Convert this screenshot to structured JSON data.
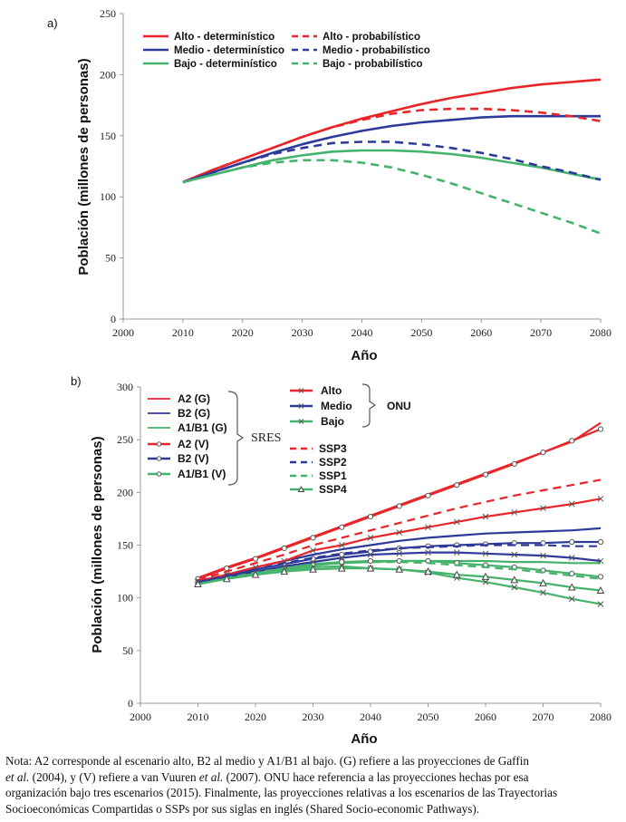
{
  "colors": {
    "red": "#e8262a",
    "blue": "#2e3a9a",
    "green": "#45b36b",
    "axis": "#999999"
  },
  "chart_data": [
    {
      "panel_label": "a)",
      "type": "line",
      "xlabel": "Año",
      "ylabel": "Población (millones de personas)",
      "xlim": [
        2000,
        2080
      ],
      "ylim": [
        0,
        250
      ],
      "xticks": [
        2000,
        2010,
        2020,
        2030,
        2040,
        2050,
        2060,
        2070,
        2080
      ],
      "yticks": [
        0,
        50,
        100,
        150,
        200,
        250
      ],
      "grid": false,
      "legend_position": "top",
      "x": [
        2010,
        2015,
        2020,
        2025,
        2030,
        2035,
        2040,
        2045,
        2050,
        2055,
        2060,
        2065,
        2070,
        2075,
        2080
      ],
      "series": [
        {
          "name": "Alto - determinístico",
          "color": "red",
          "dash": false,
          "values": [
            112,
            122,
            131,
            140,
            149,
            157,
            164,
            170,
            176,
            181,
            185,
            189,
            192,
            194,
            196
          ]
        },
        {
          "name": "Medio - determinístico",
          "color": "blue",
          "dash": false,
          "values": [
            112,
            120,
            128,
            136,
            143,
            149,
            154,
            158,
            161,
            163,
            165,
            166,
            166,
            166,
            166
          ]
        },
        {
          "name": "Bajo - determinístico",
          "color": "green",
          "dash": false,
          "values": [
            112,
            118,
            124,
            130,
            134,
            137,
            138,
            138,
            137,
            135,
            132,
            128,
            124,
            119,
            114
          ]
        },
        {
          "name": "Alto - probabilístico",
          "color": "red",
          "dash": true,
          "values": [
            112,
            122,
            131,
            140,
            149,
            157,
            163,
            168,
            171,
            172,
            172,
            171,
            169,
            166,
            162
          ]
        },
        {
          "name": "Medio - probabilístico",
          "color": "blue",
          "dash": true,
          "values": [
            112,
            120,
            128,
            135,
            140,
            144,
            145,
            145,
            143,
            140,
            136,
            131,
            125,
            120,
            114
          ]
        },
        {
          "name": "Bajo - probabilístico",
          "color": "green",
          "dash": true,
          "values": [
            112,
            118,
            124,
            128,
            130,
            130,
            128,
            124,
            118,
            111,
            103,
            95,
            87,
            79,
            70
          ]
        }
      ]
    },
    {
      "panel_label": "b)",
      "type": "line",
      "xlabel": "Año",
      "ylabel": "Población (millones de personas)",
      "xlim": [
        2000,
        2080
      ],
      "ylim": [
        0,
        300
      ],
      "xticks": [
        2000,
        2010,
        2020,
        2030,
        2040,
        2050,
        2060,
        2070,
        2080
      ],
      "yticks": [
        0,
        50,
        100,
        150,
        200,
        250,
        300
      ],
      "grid": false,
      "legend_groups": [
        {
          "label": "SRES",
          "items": [
            "A2 (G)",
            "B2 (G)",
            "A1/B1 (G)",
            "A2  (V)",
            "B2  (V)",
            "A1/B1  (V)"
          ]
        },
        {
          "label": "ONU",
          "items": [
            "Alto",
            "Medio",
            "Bajo"
          ]
        },
        {
          "label": "",
          "items": [
            "SSP3",
            "SSP2",
            "SSP1",
            "SSP4"
          ]
        }
      ],
      "x": [
        2010,
        2015,
        2020,
        2025,
        2030,
        2035,
        2040,
        2045,
        2050,
        2055,
        2060,
        2065,
        2070,
        2075,
        2080
      ],
      "series": [
        {
          "name": "A2 (G)",
          "color": "red",
          "dash": false,
          "marker": "none",
          "values": [
            119,
            129,
            138,
            148,
            158,
            168,
            178,
            188,
            198,
            208,
            218,
            228,
            238,
            248,
            266
          ]
        },
        {
          "name": "B2 (G)",
          "color": "blue",
          "dash": false,
          "marker": "none",
          "values": [
            115,
            122,
            129,
            135,
            141,
            146,
            150,
            154,
            157,
            159,
            161,
            162,
            163,
            164,
            166
          ]
        },
        {
          "name": "A1/B1 (G)",
          "color": "green",
          "dash": false,
          "marker": "none",
          "values": [
            113,
            119,
            124,
            128,
            131,
            133,
            134,
            135,
            135,
            135,
            135,
            134,
            134,
            133,
            133
          ]
        },
        {
          "name": "A2  (V)",
          "color": "red",
          "dash": false,
          "marker": "circle",
          "values": [
            118,
            128,
            137,
            147,
            157,
            167,
            177,
            187,
            197,
            207,
            217,
            227,
            238,
            249,
            260
          ]
        },
        {
          "name": "B2  (V)",
          "color": "blue",
          "dash": false,
          "marker": "circle",
          "values": [
            115,
            121,
            127,
            132,
            137,
            141,
            144,
            147,
            149,
            150,
            151,
            152,
            152,
            153,
            153
          ]
        },
        {
          "name": "A1/B1  (V)",
          "color": "green",
          "dash": false,
          "marker": "circle",
          "values": [
            113,
            119,
            124,
            128,
            132,
            134,
            135,
            135,
            135,
            133,
            131,
            129,
            126,
            123,
            120
          ]
        },
        {
          "name": "Alto",
          "color": "red",
          "dash": false,
          "marker": "x",
          "values": [
            116,
            122,
            129,
            135,
            145,
            150,
            157,
            162,
            167,
            172,
            177,
            181,
            185,
            189,
            194
          ]
        },
        {
          "name": "Medio",
          "color": "blue",
          "dash": false,
          "marker": "x",
          "values": [
            115,
            120,
            125,
            130,
            134,
            138,
            141,
            142,
            143,
            143,
            142,
            141,
            140,
            138,
            135
          ]
        },
        {
          "name": "Bajo",
          "color": "green",
          "dash": false,
          "marker": "x",
          "values": [
            113,
            118,
            122,
            126,
            129,
            130,
            128,
            127,
            124,
            119,
            115,
            110,
            105,
            99,
            94
          ]
        },
        {
          "name": "SSP3",
          "color": "red",
          "dash": true,
          "marker": "none",
          "values": [
            117,
            125,
            133,
            141,
            150,
            157,
            164,
            171,
            178,
            185,
            191,
            197,
            202,
            207,
            212
          ]
        },
        {
          "name": "SSP2",
          "color": "blue",
          "dash": true,
          "marker": "none",
          "values": [
            115,
            121,
            127,
            133,
            138,
            142,
            145,
            147,
            148,
            149,
            150,
            150,
            150,
            149,
            149
          ]
        },
        {
          "name": "SSP1",
          "color": "green",
          "dash": true,
          "marker": "none",
          "values": [
            113,
            119,
            124,
            128,
            131,
            133,
            134,
            134,
            133,
            131,
            129,
            127,
            124,
            121,
            118
          ]
        },
        {
          "name": "SSP4",
          "color": "green",
          "dash": false,
          "marker": "triangle",
          "values": [
            113,
            118,
            122,
            125,
            127,
            128,
            128,
            127,
            125,
            122,
            120,
            117,
            114,
            110,
            107
          ]
        }
      ]
    }
  ],
  "note": {
    "line1": "Nota: A2 corresponde al escenario alto, B2 al medio y A1/B1 al bajo. (G) refiere a las proyecciones de Gaffin",
    "line2_italic_a": "et al.",
    "line2_mid": " (2004), y (V) refiere a van Vuuren ",
    "line2_italic_b": "et al.",
    "line2_end": " (2007). ONU hace referencia a las proyecciones hechas por esa",
    "line3": "organización bajo tres escenarios (2015). Finalmente, las proyecciones relativas a los escenarios de las Trayectorias",
    "line4": "Socioeconómicas Compartidas o SSPs por sus siglas en inglés (Shared Socio-economic Pathways)."
  }
}
